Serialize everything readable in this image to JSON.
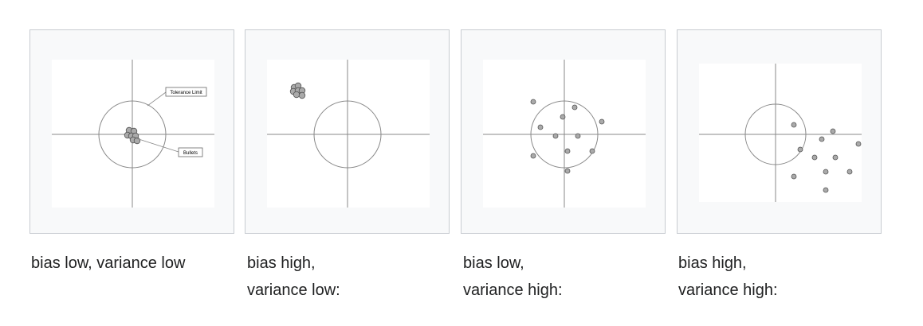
{
  "colors": {
    "panel_bg": "#f8f9fa",
    "panel_border": "#c8ccd1",
    "dot_fill": "#aaaaaa",
    "line": "#888888"
  },
  "panels": [
    {
      "labels": {
        "tolerance": "Tolerance Limit",
        "bullets": "Bullets"
      },
      "caption": [
        "bias low, variance low"
      ]
    },
    {
      "caption": [
        "bias high,",
        "variance low:"
      ]
    },
    {
      "caption": [
        "bias low,",
        "variance high:"
      ]
    },
    {
      "caption": [
        "bias high,",
        "variance high:"
      ]
    }
  ]
}
